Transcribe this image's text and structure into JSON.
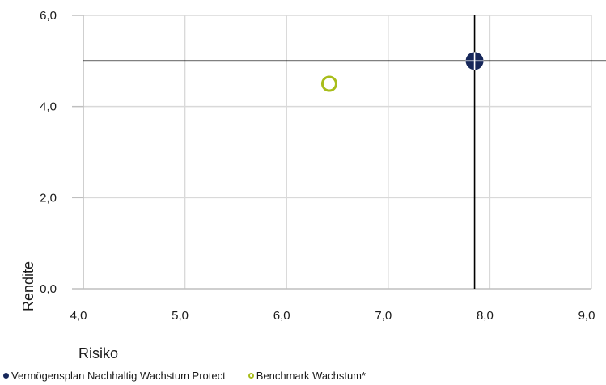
{
  "chart_data": {
    "type": "scatter",
    "xlabel": "Risiko",
    "ylabel": "Rendite",
    "xlim": [
      4.0,
      9.0
    ],
    "ylim": [
      0.0,
      6.0
    ],
    "xticks": [
      "4,0",
      "5,0",
      "6,0",
      "7,0",
      "8,0",
      "9,0"
    ],
    "yticks": [
      "0,0",
      "2,0",
      "4,0",
      "6,0"
    ],
    "grid": true,
    "crosshair": {
      "x": 7.85,
      "y": 5.0
    },
    "legend_position": "bottom-left",
    "series": [
      {
        "name": "Vermögensplan Nachhaltig Wachstum Protect",
        "x": [
          7.85
        ],
        "y": [
          5.0
        ],
        "color": "#16275a",
        "marker": "filled-circle"
      },
      {
        "name": "Benchmark Wachstum*",
        "x": [
          6.42
        ],
        "y": [
          4.5
        ],
        "color": "#a8bd1a",
        "marker": "hollow-circle"
      }
    ]
  }
}
